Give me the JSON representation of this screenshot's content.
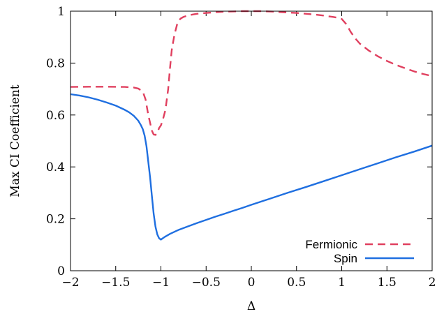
{
  "chart_data": {
    "type": "line",
    "xlabel": "Δ",
    "ylabel": "Max CI Coefficient",
    "xlim": [
      -2,
      2
    ],
    "ylim": [
      0,
      1
    ],
    "xticks": [
      {
        "value": -2,
        "label": "−2"
      },
      {
        "value": -1.5,
        "label": "−1.5"
      },
      {
        "value": -1,
        "label": "−1"
      },
      {
        "value": -0.5,
        "label": "−0.5"
      },
      {
        "value": 0,
        "label": "0"
      },
      {
        "value": 0.5,
        "label": "0.5"
      },
      {
        "value": 1,
        "label": "1"
      },
      {
        "value": 1.5,
        "label": "1.5"
      },
      {
        "value": 2,
        "label": "2"
      }
    ],
    "yticks": [
      {
        "value": 0,
        "label": "0"
      },
      {
        "value": 0.2,
        "label": "0.2"
      },
      {
        "value": 0.4,
        "label": "0.4"
      },
      {
        "value": 0.6,
        "label": "0.6"
      },
      {
        "value": 0.8,
        "label": "0.8"
      },
      {
        "value": 1,
        "label": "1"
      }
    ],
    "grid": false,
    "legend_position": "bottom-right",
    "series": [
      {
        "name": "Fermionic",
        "color": "#e0405f",
        "dash": "dashed",
        "x": [
          -2.0,
          -1.8,
          -1.6,
          -1.4,
          -1.3,
          -1.25,
          -1.2,
          -1.17,
          -1.14,
          -1.12,
          -1.1,
          -1.08,
          -1.06,
          -1.04,
          -1.02,
          -1.0,
          -0.98,
          -0.95,
          -0.92,
          -0.9,
          -0.88,
          -0.85,
          -0.82,
          -0.8,
          -0.78,
          -0.75,
          -0.7,
          -0.6,
          -0.5,
          -0.4,
          -0.3,
          -0.2,
          -0.1,
          0.0,
          0.1,
          0.2,
          0.3,
          0.4,
          0.5,
          0.6,
          0.7,
          0.8,
          0.85,
          0.9,
          0.95,
          1.0,
          1.05,
          1.1,
          1.15,
          1.2,
          1.3,
          1.4,
          1.5,
          1.6,
          1.7,
          1.8,
          1.9,
          2.0
        ],
        "y": [
          0.708,
          0.709,
          0.709,
          0.708,
          0.706,
          0.702,
          0.69,
          0.66,
          0.6,
          0.57,
          0.54,
          0.525,
          0.523,
          0.53,
          0.55,
          0.56,
          0.58,
          0.62,
          0.7,
          0.78,
          0.85,
          0.91,
          0.95,
          0.965,
          0.972,
          0.978,
          0.984,
          0.99,
          0.993,
          0.996,
          0.998,
          0.999,
          1.0,
          1.0,
          1.0,
          0.999,
          0.997,
          0.995,
          0.993,
          0.99,
          0.987,
          0.983,
          0.98,
          0.978,
          0.975,
          0.97,
          0.95,
          0.92,
          0.895,
          0.875,
          0.848,
          0.826,
          0.808,
          0.793,
          0.78,
          0.768,
          0.758,
          0.75
        ]
      },
      {
        "name": "Spin",
        "color": "#1f6fe0",
        "dash": "solid",
        "x": [
          -2.0,
          -1.9,
          -1.8,
          -1.7,
          -1.6,
          -1.5,
          -1.4,
          -1.35,
          -1.3,
          -1.25,
          -1.22,
          -1.2,
          -1.18,
          -1.16,
          -1.14,
          -1.12,
          -1.1,
          -1.08,
          -1.06,
          -1.04,
          -1.02,
          -1.0,
          -0.98,
          -0.95,
          -0.9,
          -0.85,
          -0.8,
          -0.7,
          -0.6,
          -0.5,
          -0.4,
          -0.3,
          -0.2,
          -0.1,
          0.0,
          0.2,
          0.4,
          0.6,
          0.8,
          1.0,
          1.2,
          1.4,
          1.6,
          1.8,
          2.0
        ],
        "y": [
          0.68,
          0.675,
          0.668,
          0.659,
          0.648,
          0.636,
          0.62,
          0.61,
          0.597,
          0.578,
          0.56,
          0.545,
          0.52,
          0.48,
          0.42,
          0.36,
          0.29,
          0.22,
          0.17,
          0.14,
          0.125,
          0.12,
          0.125,
          0.132,
          0.142,
          0.15,
          0.158,
          0.171,
          0.184,
          0.196,
          0.208,
          0.219,
          0.231,
          0.242,
          0.254,
          0.277,
          0.3,
          0.322,
          0.345,
          0.368,
          0.391,
          0.414,
          0.437,
          0.459,
          0.482
        ]
      }
    ]
  }
}
